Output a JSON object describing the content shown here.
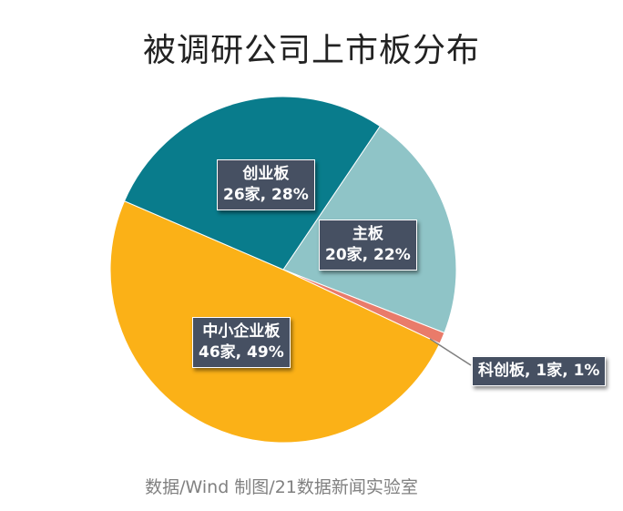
{
  "chart_data": {
    "type": "pie",
    "title": "被调研公司上市板分布",
    "slices": [
      {
        "name": "主板",
        "count": 20,
        "percent": 22,
        "color": "#8FC4C7",
        "label_lines": [
          "主板",
          "20家, 22%"
        ]
      },
      {
        "name": "科创板",
        "count": 1,
        "percent": 1,
        "color": "#E97B6A",
        "label_lines": [
          "科创板, 1家, 1%"
        ]
      },
      {
        "name": "中小企业板",
        "count": 46,
        "percent": 49,
        "color": "#FBB117",
        "label_lines": [
          "中小企业板",
          "46家, 49%"
        ]
      },
      {
        "name": "创业板",
        "count": 26,
        "percent": 28,
        "color": "#097C8C",
        "label_lines": [
          "创业板",
          "26家, 28%"
        ]
      }
    ]
  },
  "footer": {
    "source": "数据/Wind  制图/21数据新闻实验室"
  }
}
